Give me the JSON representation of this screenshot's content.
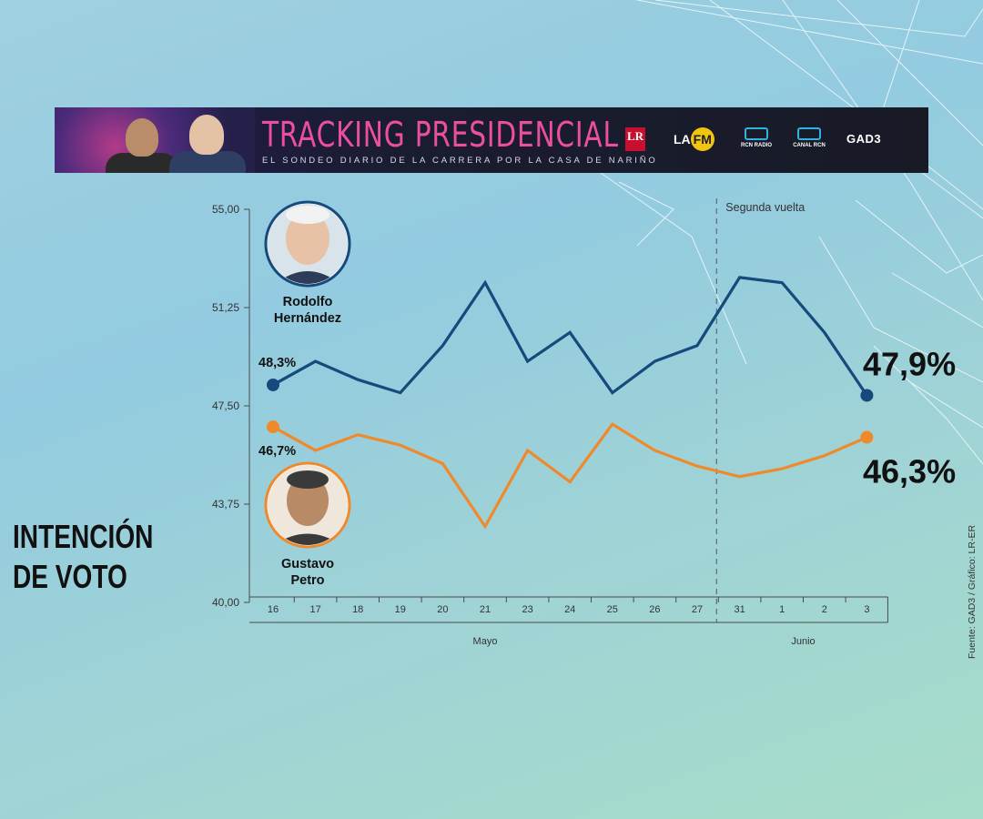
{
  "banner": {
    "title": "TRACKING PRESIDENCIAL",
    "subtitle": "EL SONDEO DIARIO DE LA CARRERA POR LA CASA DE NARIÑO",
    "logos": {
      "lr": "LR",
      "lafm_la": "LA",
      "lafm_fm": "FM",
      "rcn_radio": "RCN RADIO",
      "canal_rcn": "CANAL RCN",
      "gad3": "GAD3"
    }
  },
  "side_title": "INTENCIÓN DE VOTO",
  "source": "Fuente: GAD3 / Gráfico: LR-ER",
  "chart_data": {
    "type": "line",
    "categories": [
      "16",
      "17",
      "18",
      "19",
      "20",
      "21",
      "23",
      "24",
      "25",
      "26",
      "27",
      "31",
      "1",
      "2",
      "3"
    ],
    "month_labels": [
      {
        "label": "Mayo",
        "from": "16",
        "to": "27"
      },
      {
        "label": "Junio",
        "from": "31",
        "to": "3"
      }
    ],
    "y_ticks": [
      "40,00",
      "43,75",
      "47,50",
      "51,25",
      "55,00"
    ],
    "ylim": [
      40,
      55
    ],
    "annotation": {
      "label": "Segunda vuelta",
      "before_category": "31"
    },
    "series": [
      {
        "name": "Rodolfo Hernández",
        "name_lines": [
          "Rodolfo",
          "Hernández"
        ],
        "color": "#174a7c",
        "values": [
          48.3,
          49.2,
          48.5,
          48.0,
          49.8,
          52.2,
          49.2,
          50.3,
          48.0,
          49.2,
          49.8,
          52.4,
          52.2,
          50.3,
          47.9
        ],
        "start_label": "48,3%",
        "end_label": "47,9%"
      },
      {
        "name": "Gustavo Petro",
        "name_lines": [
          "Gustavo",
          "Petro"
        ],
        "color": "#ef8a2c",
        "values": [
          46.7,
          45.8,
          46.4,
          46.0,
          45.3,
          42.9,
          45.8,
          44.6,
          46.8,
          45.8,
          45.2,
          44.8,
          45.1,
          45.6,
          46.3
        ],
        "start_label": "46,7%",
        "end_label": "46,3%"
      }
    ]
  }
}
